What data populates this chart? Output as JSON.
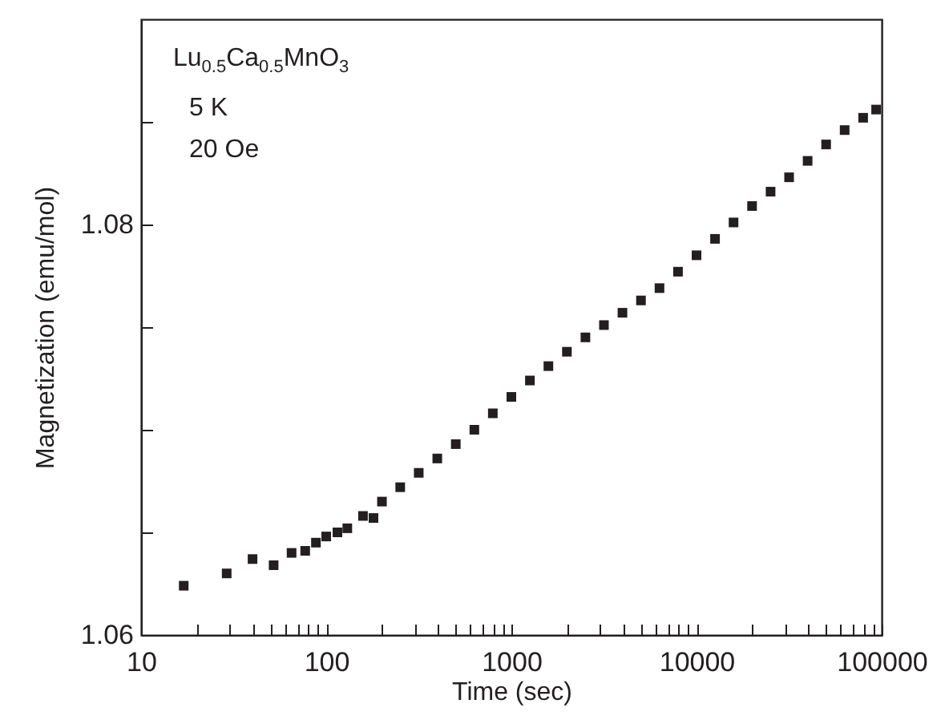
{
  "chart_data": {
    "type": "scatter",
    "xlabel": "Time (sec)",
    "ylabel": "Magnetization (emu/mol)",
    "annotations": [
      "Lu$_{0.5}$Ca$_{0.5}$MnO$_{3}$",
      "5 K",
      "20 Oe"
    ],
    "log": "x",
    "marker": "square",
    "grid": false,
    "xlim": [
      10,
      100000
    ],
    "ylim": [
      1.06,
      1.09
    ],
    "xticks": [
      10,
      {
        "value": 20,
        "label": null
      },
      {
        "value": 30,
        "label": null
      },
      {
        "value": 40,
        "label": null
      },
      {
        "value": 50,
        "label": null
      },
      {
        "value": 60,
        "label": null
      },
      {
        "value": 70,
        "label": null
      },
      {
        "value": 80,
        "label": null
      },
      {
        "value": 90,
        "label": null
      },
      100,
      {
        "value": 200,
        "label": null
      },
      {
        "value": 300,
        "label": null
      },
      {
        "value": 400,
        "label": null
      },
      {
        "value": 500,
        "label": null
      },
      {
        "value": 600,
        "label": null
      },
      {
        "value": 700,
        "label": null
      },
      {
        "value": 800,
        "label": null
      },
      {
        "value": 900,
        "label": null
      },
      1000,
      {
        "value": 2000,
        "label": null
      },
      {
        "value": 3000,
        "label": null
      },
      {
        "value": 4000,
        "label": null
      },
      {
        "value": 5000,
        "label": null
      },
      {
        "value": 6000,
        "label": null
      },
      {
        "value": 7000,
        "label": null
      },
      {
        "value": 8000,
        "label": null
      },
      {
        "value": 9000,
        "label": null
      },
      10000,
      {
        "value": 20000,
        "label": null
      },
      {
        "value": 30000,
        "label": null
      },
      {
        "value": 40000,
        "label": null
      },
      {
        "value": 50000,
        "label": null
      },
      {
        "value": 60000,
        "label": null
      },
      {
        "value": 70000,
        "label": null
      },
      {
        "value": 80000,
        "label": null
      },
      {
        "value": 90000,
        "label": null
      },
      100000
    ],
    "yticks": [
      1.06,
      {
        "value": 1.065,
        "label": null
      },
      {
        "value": 1.07,
        "label": null
      },
      {
        "value": 1.075,
        "label": null
      },
      1.08,
      {
        "value": 1.085,
        "label": null
      }
    ],
    "series": [
      {
        "color": "#231f20",
        "x": [
          17,
          29,
          40,
          52,
          65,
          77,
          88,
          100,
          115,
          130,
          158,
          180,
          200,
          251,
          316,
          398,
          501,
          631,
          794,
          1000,
          1259,
          1585,
          1995,
          2512,
          3162,
          3981,
          5012,
          6310,
          7943,
          10000,
          12589,
          15849,
          19953,
          25119,
          31623,
          39811,
          50119,
          63096,
          79433,
          93325
        ],
        "values": [
          1.0624,
          1.063,
          1.0637,
          1.0634,
          1.064,
          1.0641,
          1.0645,
          1.0648,
          1.065,
          1.0652,
          1.0658,
          1.0657,
          1.0665,
          1.0672,
          1.0679,
          1.0686,
          1.0693,
          1.07,
          1.0708,
          1.0716,
          1.0724,
          1.0731,
          1.0738,
          1.0745,
          1.0751,
          1.0757,
          1.0763,
          1.0769,
          1.0777,
          1.0785,
          1.0793,
          1.0801,
          1.0809,
          1.0816,
          1.0823,
          1.0831,
          1.0839,
          1.0846,
          1.0852,
          1.0856
        ]
      }
    ]
  }
}
